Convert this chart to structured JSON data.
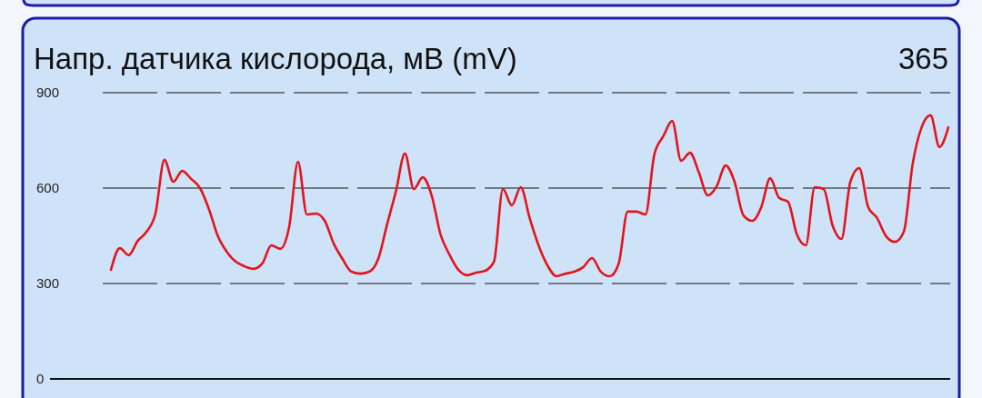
{
  "chart_data": {
    "type": "line",
    "title": "Напр. датчика кислорода, мВ (mV)",
    "annotations": [
      "365"
    ],
    "categories": [
      null,
      null,
      null,
      null,
      null,
      null,
      null,
      null,
      null,
      null,
      null,
      null,
      null,
      null,
      null,
      null,
      null,
      null,
      null,
      null,
      null,
      null,
      null,
      null,
      null,
      null,
      null,
      null,
      null,
      null,
      null,
      null,
      null,
      null,
      null,
      null,
      null,
      null,
      null,
      null,
      null,
      null,
      null,
      null,
      null,
      null,
      null,
      null,
      null,
      null,
      null,
      null,
      null,
      null,
      null,
      null,
      null,
      null,
      null,
      null,
      null,
      null,
      null,
      null,
      null,
      null,
      null,
      null,
      null,
      null,
      null,
      null,
      null,
      null,
      null,
      null,
      null,
      null,
      null,
      null,
      null,
      null,
      null,
      null,
      null,
      null,
      null,
      null,
      null,
      null,
      null,
      null,
      null,
      null,
      null
    ],
    "series": [
      {
        "color": "#e3141c",
        "values": [
          343,
          411,
          389,
          434,
          463,
          520,
          689,
          620,
          654,
          629,
          600,
          534,
          449,
          400,
          369,
          354,
          346,
          363,
          420,
          409,
          477,
          683,
          517,
          520,
          497,
          426,
          377,
          337,
          331,
          337,
          377,
          486,
          591,
          709,
          597,
          634,
          577,
          454,
          391,
          343,
          326,
          334,
          340,
          369,
          597,
          546,
          603,
          506,
          420,
          357,
          323,
          331,
          337,
          351,
          380,
          337,
          323,
          363,
          526,
          526,
          517,
          706,
          763,
          811,
          686,
          711,
          649,
          577,
          606,
          671,
          620,
          514,
          497,
          540,
          631,
          569,
          557,
          454,
          420,
          603,
          597,
          483,
          440,
          620,
          663,
          540,
          506,
          449,
          431,
          463,
          677,
          791,
          829,
          729,
          791
        ]
      }
    ],
    "ylim": [
      0,
      900
    ],
    "yticks": [
      0,
      300,
      600,
      900
    ],
    "grid": "y",
    "line_style": "solid",
    "marker": "none"
  }
}
